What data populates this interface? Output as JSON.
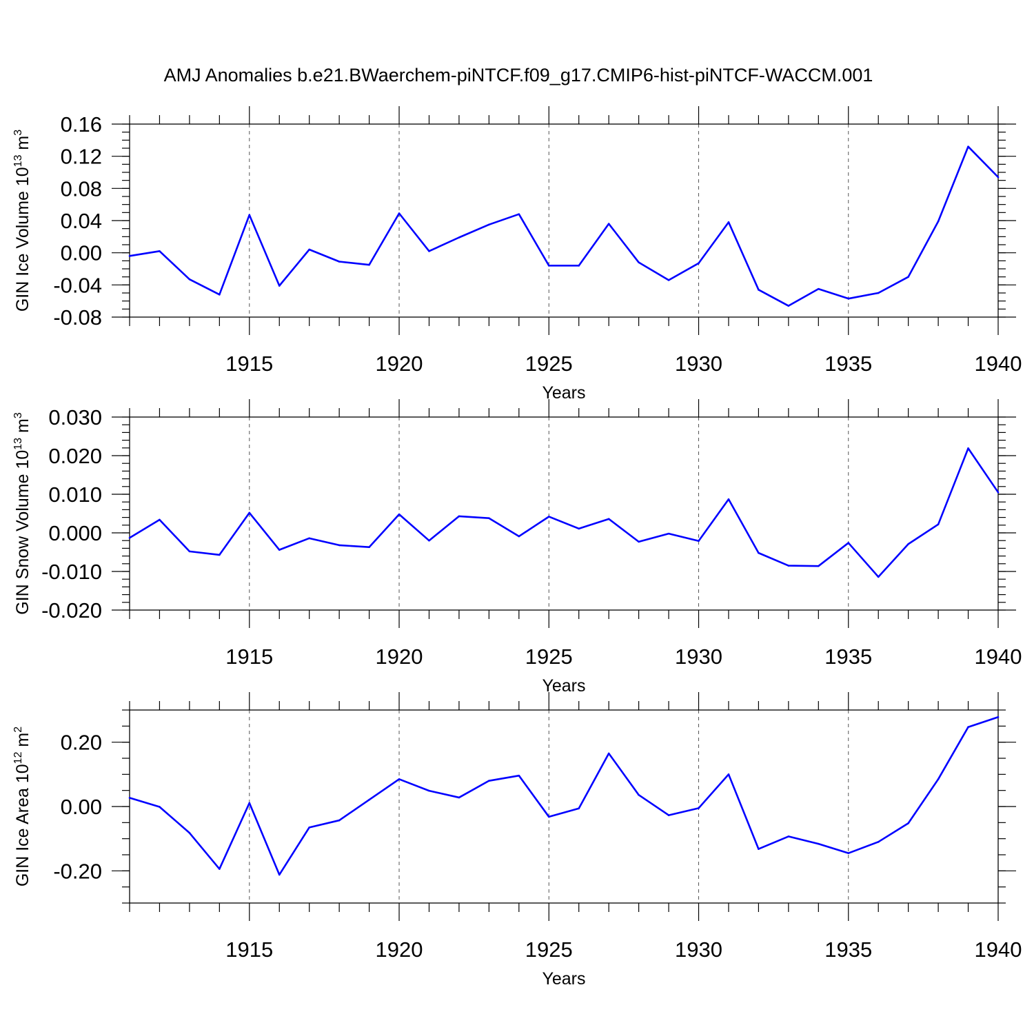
{
  "chart_data": {
    "title": "AMJ Anomalies b.e21.BWaerchem-piNTCF.f09_g17.CMIP6-hist-piNTCF-WACCM.001",
    "panels": [
      {
        "type": "line",
        "ylabel": "GIN Ice Volume 10",
        "ylabel_exp": "13",
        "ylabel_unit": " m",
        "ylabel_unit_exp": "3",
        "xlabel": "Years",
        "xlim": [
          1911,
          1940
        ],
        "ylim": [
          -0.08,
          0.16
        ],
        "yticks": [
          -0.08,
          -0.04,
          0.0,
          0.04,
          0.08,
          0.12,
          0.16
        ],
        "ytick_labels": [
          "-0.08",
          "-0.04",
          "0.00",
          "0.04",
          "0.08",
          "0.12",
          "0.16"
        ],
        "yminor_step": 0.01,
        "xticks": [
          1915,
          1920,
          1925,
          1930,
          1935,
          1940
        ],
        "xtick_labels": [
          "1915",
          "1920",
          "1925",
          "1930",
          "1935",
          "1940"
        ],
        "color": "#0000ff",
        "x": [
          1911,
          1912,
          1913,
          1914,
          1915,
          1916,
          1917,
          1918,
          1919,
          1920,
          1921,
          1922,
          1923,
          1924,
          1925,
          1926,
          1927,
          1928,
          1929,
          1930,
          1931,
          1932,
          1933,
          1934,
          1935,
          1936,
          1937,
          1938,
          1939,
          1940
        ],
        "y": [
          -0.004,
          0.002,
          -0.033,
          -0.052,
          0.047,
          -0.041,
          0.004,
          -0.011,
          -0.015,
          0.049,
          0.002,
          0.019,
          0.035,
          0.048,
          -0.016,
          -0.016,
          0.036,
          -0.012,
          -0.034,
          -0.013,
          0.038,
          -0.046,
          -0.066,
          -0.045,
          -0.057,
          -0.05,
          -0.03,
          0.039,
          0.132,
          0.094
        ]
      },
      {
        "type": "line",
        "ylabel": "GIN Snow Volume 10",
        "ylabel_exp": "13",
        "ylabel_unit": " m",
        "ylabel_unit_exp": "3",
        "xlabel": "Years",
        "xlim": [
          1911,
          1940
        ],
        "ylim": [
          -0.02,
          0.03
        ],
        "yticks": [
          -0.02,
          -0.01,
          0.0,
          0.01,
          0.02,
          0.03
        ],
        "ytick_labels": [
          "-0.020",
          "-0.010",
          "0.000",
          "0.010",
          "0.020",
          "0.030"
        ],
        "yminor_step": 0.002,
        "xticks": [
          1915,
          1920,
          1925,
          1930,
          1935,
          1940
        ],
        "xtick_labels": [
          "1915",
          "1920",
          "1925",
          "1930",
          "1935",
          "1940"
        ],
        "color": "#0000ff",
        "x": [
          1911,
          1912,
          1913,
          1914,
          1915,
          1916,
          1917,
          1918,
          1919,
          1920,
          1921,
          1922,
          1923,
          1924,
          1925,
          1926,
          1927,
          1928,
          1929,
          1930,
          1931,
          1932,
          1933,
          1934,
          1935,
          1936,
          1937,
          1938,
          1939,
          1940
        ],
        "y": [
          -0.0013,
          0.0034,
          -0.0048,
          -0.0057,
          0.0052,
          -0.0044,
          -0.0014,
          -0.0032,
          -0.0037,
          0.0048,
          -0.002,
          0.0043,
          0.0038,
          -0.0009,
          0.0042,
          0.0011,
          0.0036,
          -0.0023,
          -0.0002,
          -0.0021,
          0.0087,
          -0.0052,
          -0.0085,
          -0.0086,
          -0.0026,
          -0.0114,
          -0.0029,
          0.0022,
          0.0219,
          0.0105
        ]
      },
      {
        "type": "line",
        "ylabel": "GIN Ice Area 10",
        "ylabel_exp": "12",
        "ylabel_unit": " m",
        "ylabel_unit_exp": "2",
        "xlabel": "Years",
        "xlim": [
          1911,
          1940
        ],
        "ylim": [
          -0.3,
          0.3
        ],
        "yticks": [
          -0.2,
          0.0,
          0.2
        ],
        "ytick_labels": [
          "-0.20",
          "0.00",
          "0.20"
        ],
        "yminor_step": 0.05,
        "xticks": [
          1915,
          1920,
          1925,
          1930,
          1935,
          1940
        ],
        "xtick_labels": [
          "1915",
          "1920",
          "1925",
          "1930",
          "1935",
          "1940"
        ],
        "color": "#0000ff",
        "x": [
          1911,
          1912,
          1913,
          1914,
          1915,
          1916,
          1917,
          1918,
          1919,
          1920,
          1921,
          1922,
          1923,
          1924,
          1925,
          1926,
          1927,
          1928,
          1929,
          1930,
          1931,
          1932,
          1933,
          1934,
          1935,
          1936,
          1937,
          1938,
          1939,
          1940
        ],
        "y": [
          0.027,
          -0.001,
          -0.082,
          -0.194,
          0.011,
          -0.212,
          -0.065,
          -0.043,
          0.021,
          0.085,
          0.049,
          0.028,
          0.08,
          0.096,
          -0.032,
          -0.006,
          0.165,
          0.036,
          -0.027,
          -0.005,
          0.1,
          -0.132,
          -0.093,
          -0.116,
          -0.145,
          -0.11,
          -0.052,
          0.085,
          0.247,
          0.278
        ]
      }
    ]
  }
}
